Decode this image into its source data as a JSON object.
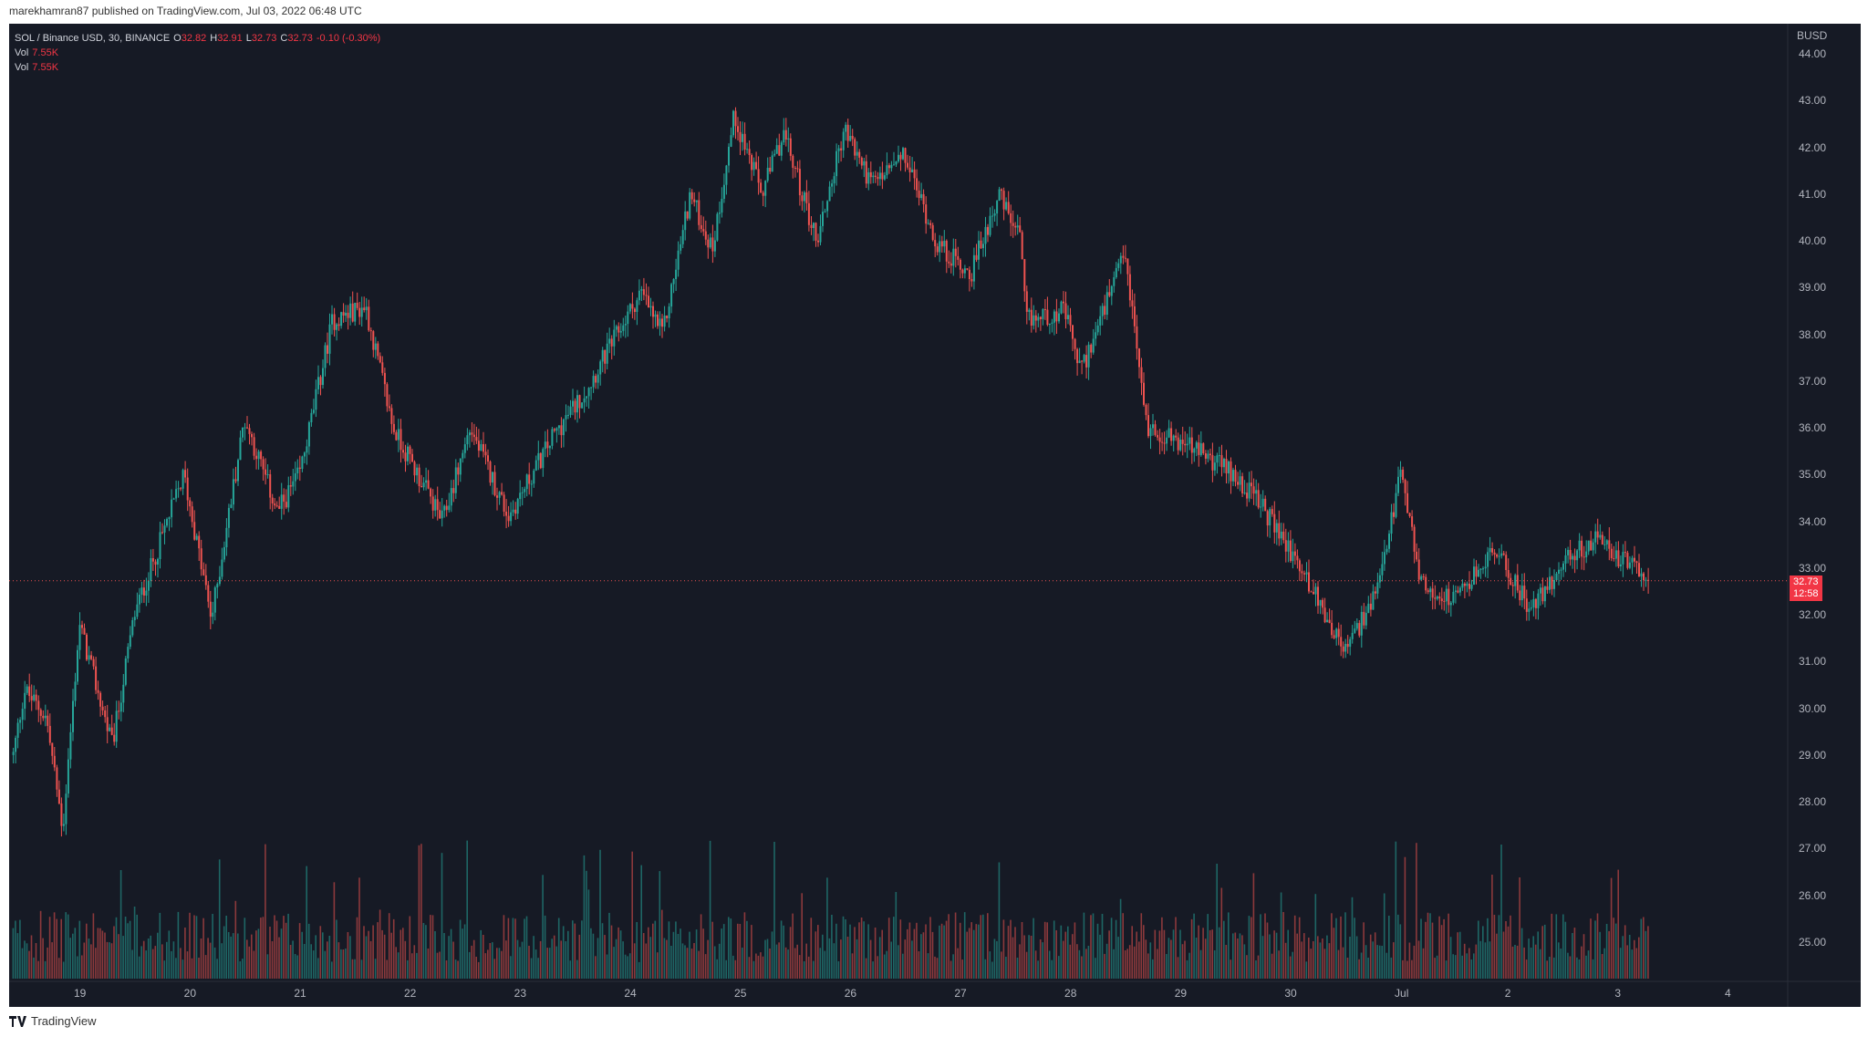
{
  "header": {
    "publisher": "marekhamran87 published on TradingView.com, Jul 03, 2022 06:48 UTC"
  },
  "legend": {
    "symbol": "SOL / Binance USD, 30, BINANCE",
    "open_label": "O",
    "open": "32.82",
    "high_label": "H",
    "high": "32.91",
    "low_label": "L",
    "low": "32.73",
    "close_label": "C",
    "close": "32.73",
    "change": "-0.10 (-0.30%)",
    "vol1_label": "Vol",
    "vol1": "7.55K",
    "vol2_label": "Vol",
    "vol2": "7.55K"
  },
  "axis": {
    "currency": "BUSD",
    "price_ticks": [
      "44.00",
      "43.00",
      "42.00",
      "41.00",
      "40.00",
      "39.00",
      "38.00",
      "37.00",
      "36.00",
      "35.00",
      "34.00",
      "33.00",
      "32.00",
      "31.00",
      "30.00",
      "29.00",
      "28.00",
      "27.00",
      "26.00",
      "25.00"
    ],
    "time_ticks": [
      "19",
      "20",
      "21",
      "22",
      "23",
      "24",
      "25",
      "26",
      "27",
      "28",
      "29",
      "30",
      "Jul",
      "2",
      "3",
      "4"
    ]
  },
  "last_price": {
    "price": "32.73",
    "countdown": "12:58"
  },
  "footer": {
    "brand": "TradingView"
  },
  "colors": {
    "up": "#26a69a",
    "down": "#ef5350",
    "background": "#161a25",
    "grid": "#1f2330"
  },
  "chart_data": {
    "type": "candlestick",
    "title": "SOL / Binance USD, 30, BINANCE",
    "ylim": [
      24,
      44.5
    ],
    "x_days": [
      "19",
      "20",
      "21",
      "22",
      "23",
      "24",
      "25",
      "26",
      "27",
      "28",
      "29",
      "30",
      "Jul",
      "2",
      "3",
      "4"
    ],
    "close_path_knots": [
      {
        "t": 18.4,
        "p": 29.0
      },
      {
        "t": 18.5,
        "p": 30.4
      },
      {
        "t": 18.7,
        "p": 29.8
      },
      {
        "t": 18.85,
        "p": 27.4
      },
      {
        "t": 19.0,
        "p": 31.8
      },
      {
        "t": 19.3,
        "p": 29.2
      },
      {
        "t": 19.5,
        "p": 32.0
      },
      {
        "t": 19.95,
        "p": 35.0
      },
      {
        "t": 20.2,
        "p": 31.9
      },
      {
        "t": 20.5,
        "p": 36.2
      },
      {
        "t": 20.8,
        "p": 34.2
      },
      {
        "t": 21.0,
        "p": 35.0
      },
      {
        "t": 21.3,
        "p": 38.3
      },
      {
        "t": 21.6,
        "p": 38.6
      },
      {
        "t": 21.85,
        "p": 36.0
      },
      {
        "t": 22.3,
        "p": 34.0
      },
      {
        "t": 22.55,
        "p": 36.0
      },
      {
        "t": 22.9,
        "p": 34.1
      },
      {
        "t": 23.3,
        "p": 35.8
      },
      {
        "t": 23.6,
        "p": 36.8
      },
      {
        "t": 24.1,
        "p": 38.9
      },
      {
        "t": 24.3,
        "p": 38.0
      },
      {
        "t": 24.55,
        "p": 41.0
      },
      {
        "t": 24.75,
        "p": 39.8
      },
      {
        "t": 24.95,
        "p": 42.7
      },
      {
        "t": 25.2,
        "p": 41.0
      },
      {
        "t": 25.4,
        "p": 42.3
      },
      {
        "t": 25.7,
        "p": 40.0
      },
      {
        "t": 25.95,
        "p": 42.4
      },
      {
        "t": 26.2,
        "p": 41.2
      },
      {
        "t": 26.5,
        "p": 41.8
      },
      {
        "t": 26.8,
        "p": 39.9
      },
      {
        "t": 27.1,
        "p": 39.3
      },
      {
        "t": 27.35,
        "p": 41.0
      },
      {
        "t": 27.55,
        "p": 40.0
      },
      {
        "t": 27.6,
        "p": 38.3
      },
      {
        "t": 27.95,
        "p": 38.5
      },
      {
        "t": 28.1,
        "p": 37.2
      },
      {
        "t": 28.5,
        "p": 39.7
      },
      {
        "t": 28.7,
        "p": 36.0
      },
      {
        "t": 29.1,
        "p": 35.6
      },
      {
        "t": 29.5,
        "p": 35.0
      },
      {
        "t": 29.75,
        "p": 34.3
      },
      {
        "t": 30.1,
        "p": 33.0
      },
      {
        "t": 30.5,
        "p": 31.2
      },
      {
        "t": 30.8,
        "p": 32.5
      },
      {
        "t": 31.0,
        "p": 35.0
      },
      {
        "t": 31.2,
        "p": 32.6
      },
      {
        "t": 31.5,
        "p": 32.3
      },
      {
        "t": 31.85,
        "p": 33.4
      },
      {
        "t": 32.2,
        "p": 32.1
      },
      {
        "t": 32.5,
        "p": 33.2
      },
      {
        "t": 32.8,
        "p": 33.6
      },
      {
        "t": 33.0,
        "p": 33.2
      },
      {
        "t": 33.27,
        "p": 32.73
      }
    ],
    "last_price": 32.73
  }
}
